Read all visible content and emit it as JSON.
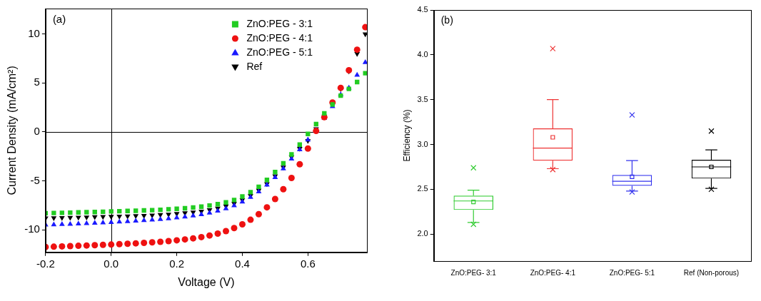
{
  "chart_data": [
    {
      "type": "scatter",
      "annotations": [
        "(a)"
      ],
      "x_label": "Voltage (V)",
      "y_label": "Current Density (mA/cm²)",
      "x": [
        -0.2,
        -0.175,
        -0.15,
        -0.125,
        -0.1,
        -0.075,
        -0.05,
        -0.025,
        0,
        0.025,
        0.05,
        0.075,
        0.1,
        0.125,
        0.15,
        0.175,
        0.2,
        0.225,
        0.25,
        0.275,
        0.3,
        0.325,
        0.35,
        0.375,
        0.4,
        0.425,
        0.45,
        0.475,
        0.5,
        0.525,
        0.55,
        0.575,
        0.6,
        0.625,
        0.65,
        0.675,
        0.7,
        0.725,
        0.75,
        0.775
      ],
      "series": [
        {
          "name": "ZnO:PEG - 3:1",
          "color": "#22cc22",
          "marker": "square",
          "values": [
            -8.3,
            -8.28,
            -8.26,
            -8.24,
            -8.22,
            -8.2,
            -8.18,
            -8.15,
            -8.12,
            -8.1,
            -8.07,
            -8.05,
            -8.02,
            -7.99,
            -7.95,
            -7.9,
            -7.85,
            -7.8,
            -7.72,
            -7.63,
            -7.52,
            -7.38,
            -7.2,
            -6.95,
            -6.6,
            -6.15,
            -5.6,
            -4.9,
            -4.1,
            -3.2,
            -2.3,
            -1.3,
            -0.2,
            0.8,
            1.9,
            2.8,
            3.7,
            4.4,
            5.1,
            6.0
          ]
        },
        {
          "name": "ZnO:PEG - 4:1",
          "color": "#ee1111",
          "marker": "circle",
          "values": [
            -11.75,
            -11.72,
            -11.69,
            -11.66,
            -11.63,
            -11.6,
            -11.57,
            -11.53,
            -11.5,
            -11.46,
            -11.42,
            -11.38,
            -11.33,
            -11.28,
            -11.22,
            -11.15,
            -11.07,
            -10.98,
            -10.87,
            -10.74,
            -10.58,
            -10.38,
            -10.13,
            -9.82,
            -9.44,
            -8.97,
            -8.4,
            -7.7,
            -6.85,
            -5.85,
            -4.7,
            -3.3,
            -1.7,
            0.1,
            1.5,
            3.0,
            4.5,
            6.3,
            8.4,
            10.7
          ]
        },
        {
          "name": "ZnO:PEG - 5:1",
          "color": "#1a1aff",
          "marker": "triangle-up",
          "values": [
            -9.5,
            -9.47,
            -9.44,
            -9.41,
            -9.38,
            -9.35,
            -9.31,
            -9.27,
            -9.23,
            -9.19,
            -9.14,
            -9.09,
            -9.04,
            -8.98,
            -8.92,
            -8.85,
            -8.77,
            -8.68,
            -8.57,
            -8.44,
            -8.28,
            -8.08,
            -7.83,
            -7.52,
            -7.14,
            -6.67,
            -6.1,
            -5.42,
            -4.65,
            -3.75,
            -2.75,
            -1.8,
            -0.8,
            0.2,
            1.4,
            2.6,
            3.8,
            4.5,
            5.8,
            7.1
          ]
        },
        {
          "name": "Ref",
          "color": "#000000",
          "marker": "triangle-down",
          "values": [
            -8.8,
            -8.78,
            -8.76,
            -8.74,
            -8.72,
            -8.7,
            -8.68,
            -8.66,
            -8.64,
            -8.62,
            -8.6,
            -8.57,
            -8.54,
            -8.5,
            -8.46,
            -8.41,
            -8.35,
            -8.28,
            -8.2,
            -8.1,
            -7.97,
            -7.8,
            -7.58,
            -7.3,
            -6.95,
            -6.5,
            -5.95,
            -5.3,
            -4.5,
            -3.6,
            -2.55,
            -1.7,
            -0.9,
            0.3,
            1.6,
            3.0,
            4.4,
            6.2,
            8.0,
            10.0
          ]
        }
      ],
      "xlim": [
        -0.2,
        0.78
      ],
      "ylim": [
        -12.3,
        12.6
      ],
      "xticks": [
        -0.2,
        {
          "value": 0,
          "label": "0.0"
        },
        0.2,
        0.4,
        0.6
      ],
      "yticks": [
        -10,
        -5,
        0,
        5,
        10
      ],
      "grid": false,
      "legend": "upper right"
    },
    {
      "type": "box",
      "annotations": [
        "(b)"
      ],
      "y_label": "Efficiency (%)",
      "categories": [
        "ZnO:PEG- 3:1",
        "ZnO:PEG- 4:1",
        "ZnO:PEG- 5:1",
        "Ref (Non-porous)"
      ],
      "colors": [
        "#33cc33",
        "#ee3333",
        "#3333ee",
        "#000000"
      ],
      "boxes": [
        {
          "whisker_low": 2.13,
          "q1": 2.27,
          "median": 2.37,
          "q3": 2.43,
          "whisker_high": 2.49,
          "mean": 2.36,
          "min": 2.11,
          "max": 2.74
        },
        {
          "whisker_low": 2.73,
          "q1": 2.82,
          "median": 2.96,
          "q3": 3.18,
          "whisker_high": 3.5,
          "mean": 3.08,
          "min": 2.72,
          "max": 4.07
        },
        {
          "whisker_low": 2.48,
          "q1": 2.54,
          "median": 2.59,
          "q3": 2.66,
          "whisker_high": 2.82,
          "mean": 2.64,
          "min": 2.47,
          "max": 3.33
        },
        {
          "whisker_low": 2.51,
          "q1": 2.62,
          "median": 2.75,
          "q3": 2.83,
          "whisker_high": 2.94,
          "mean": 2.75,
          "min": 2.5,
          "max": 3.15
        }
      ],
      "ylim": [
        1.7,
        4.5
      ],
      "yticks": [
        {
          "value": 2,
          "label": "2.0"
        },
        2.5,
        {
          "value": 3,
          "label": "3.0"
        },
        3.5,
        {
          "value": 4,
          "label": "4.0"
        },
        4.5
      ],
      "grid": false
    }
  ]
}
